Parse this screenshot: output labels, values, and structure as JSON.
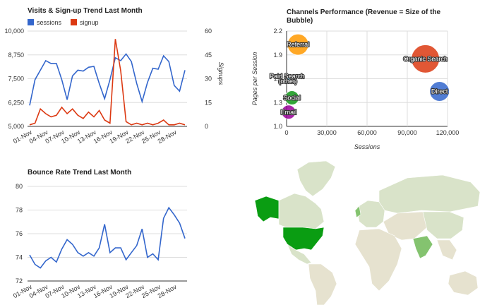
{
  "colors": {
    "sessions": "#3366cc",
    "signup": "#dc3912",
    "grid": "#dddddd",
    "axis_text": "#333333",
    "map_land": "#d9e3c9",
    "map_high": "#0a9d12",
    "map_mid": "#84c36f"
  },
  "chart_data": [
    {
      "type": "line",
      "title": "Visits & Sign-up Trend Last Month",
      "legend_position": "top-left",
      "x_tick_labels": [
        "01-Nov",
        "04-Nov",
        "07-Nov",
        "10-Nov",
        "13-Nov",
        "16-Nov",
        "19-Nov",
        "22-Nov",
        "25-Nov",
        "28-Nov"
      ],
      "y_left": {
        "ticks": [
          "10,000",
          "8,750",
          "7,500",
          "6,250",
          "5,000"
        ],
        "ylim": [
          5000,
          10000
        ],
        "label": ""
      },
      "y_right": {
        "ticks": [
          "60",
          "45",
          "30",
          "15",
          "0"
        ],
        "ylim": [
          0,
          60
        ],
        "label": "Signups"
      },
      "grid": true,
      "series": [
        {
          "name": "sessions",
          "axis": "left",
          "values": [
            6100,
            7450,
            7950,
            8450,
            8300,
            8300,
            7450,
            6400,
            7650,
            7950,
            7900,
            8100,
            8150,
            7250,
            6450,
            7450,
            8600,
            8450,
            8800,
            8400,
            7250,
            6300,
            7300,
            8050,
            8000,
            8700,
            8400,
            7150,
            6850,
            7950
          ]
        },
        {
          "name": "signup",
          "axis": "right",
          "values": [
            1,
            2,
            11,
            8,
            6,
            7,
            12,
            8,
            11,
            7,
            5,
            9,
            6,
            10,
            4,
            2,
            55,
            35,
            3,
            1,
            2,
            1,
            2,
            1,
            2,
            4,
            1,
            1,
            2,
            1
          ]
        }
      ]
    },
    {
      "type": "scatter",
      "title": "Channels Performance (Revenue = Size of the\nBubble)",
      "xlabel": "Sessions",
      "ylabel": "Pages per Session",
      "x_tick_labels": [
        "0",
        "30,000",
        "60,000",
        "90,000",
        "120,000"
      ],
      "y_tick_labels": [
        "2.2",
        "1.9",
        "1.6",
        "1.3",
        "1.0"
      ],
      "xlim": [
        0,
        120000
      ],
      "ylim": [
        1.0,
        2.2
      ],
      "grid": true,
      "points": [
        {
          "label": "Referral",
          "x": 8500,
          "y": 2.03,
          "size": 15,
          "color": "#ff9900"
        },
        {
          "label": "Organic Search",
          "x": 103500,
          "y": 1.85,
          "size": 20,
          "color": "#dc3912"
        },
        {
          "label": "Direct",
          "x": 114000,
          "y": 1.44,
          "size": 14,
          "color": "#3366cc"
        },
        {
          "label": "Paid Search",
          "x": 300,
          "y": 1.63,
          "size": 3,
          "color": "#990099"
        },
        {
          "label": "(other)",
          "x": 900,
          "y": 1.57,
          "size": 4,
          "color": "#0099c6"
        },
        {
          "label": "Social",
          "x": 4000,
          "y": 1.36,
          "size": 10,
          "color": "#109618"
        },
        {
          "label": "Email",
          "x": 1500,
          "y": 1.18,
          "size": 10,
          "color": "#990099"
        }
      ]
    },
    {
      "type": "line",
      "title": "Bounce Rate Trend Last Month",
      "x_tick_labels": [
        "01-Nov",
        "04-Nov",
        "07-Nov",
        "10-Nov",
        "13-Nov",
        "16-Nov",
        "19-Nov",
        "22-Nov",
        "25-Nov",
        "28-Nov"
      ],
      "y_tick_labels": [
        "80",
        "78",
        "76",
        "74",
        "72"
      ],
      "ylim": [
        72,
        80
      ],
      "grid": true,
      "series": [
        {
          "name": "bounce rate",
          "values": [
            74.2,
            73.4,
            73.1,
            73.7,
            74.0,
            73.6,
            74.7,
            75.5,
            75.1,
            74.4,
            74.1,
            74.4,
            74.1,
            74.8,
            76.8,
            74.4,
            74.8,
            74.8,
            73.8,
            74.4,
            75.0,
            76.4,
            74.0,
            74.3,
            73.8,
            77.3,
            78.2,
            77.6,
            76.9,
            75.6
          ]
        }
      ]
    }
  ]
}
